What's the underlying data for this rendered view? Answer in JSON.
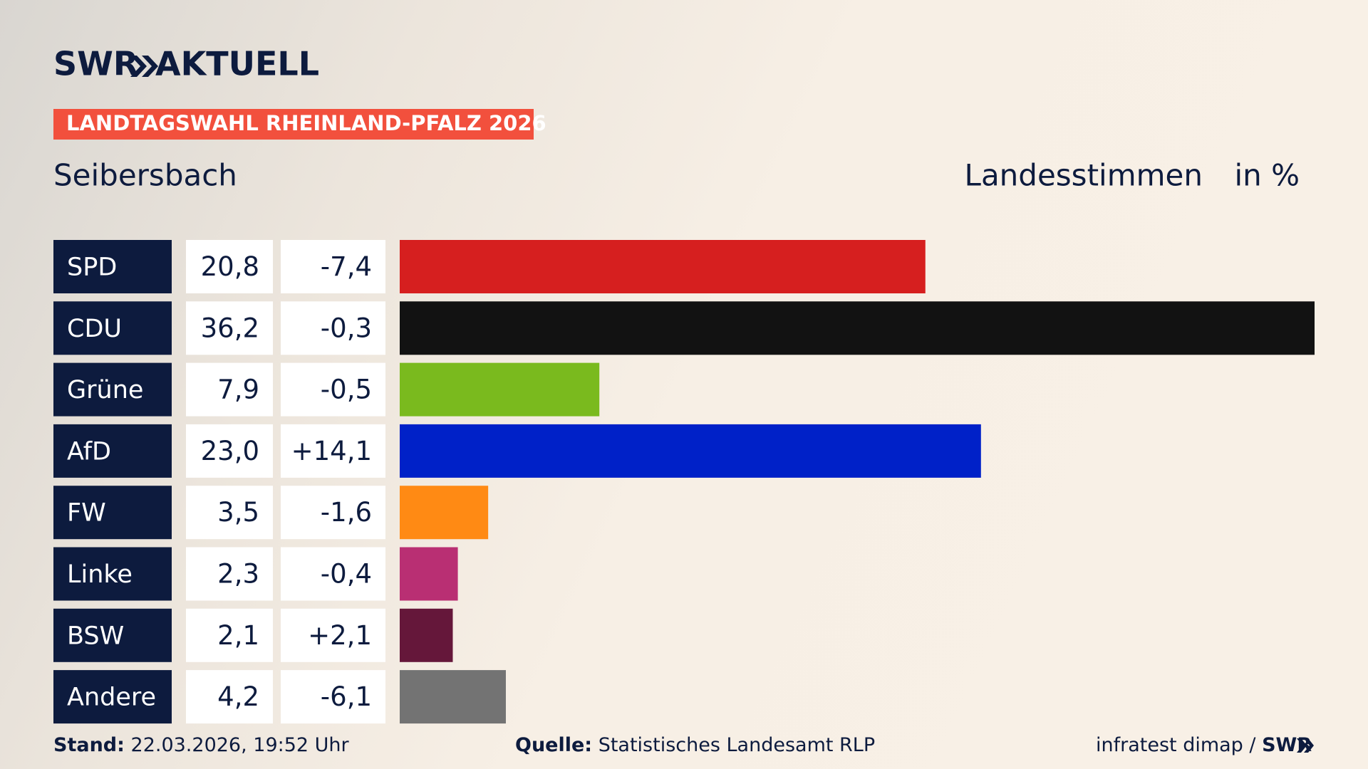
{
  "header": {
    "brand": "SWR",
    "product": "AKTUELL",
    "tag": "LANDTAGSWAHL RHEINLAND-PFALZ 2026"
  },
  "chart_data": {
    "type": "bar",
    "title": "Seibersbach",
    "measure": "Landesstimmen",
    "unit": "in %",
    "categories": [
      "SPD",
      "CDU",
      "Grüne",
      "AfD",
      "FW",
      "Linke",
      "BSW",
      "Andere"
    ],
    "values": [
      20.8,
      36.2,
      7.9,
      23.0,
      3.5,
      2.3,
      2.1,
      4.2
    ],
    "value_labels": [
      "20,8",
      "36,2",
      "7,9",
      "23,0",
      "3,5",
      "2,3",
      "2,1",
      "4,2"
    ],
    "changes": [
      -7.4,
      -0.3,
      -0.5,
      14.1,
      -1.6,
      -0.4,
      2.1,
      -6.1
    ],
    "change_labels": [
      "-7,4",
      "-0,3",
      "-0,5",
      "+14,1",
      "-1,6",
      "-0,4",
      "+2,1",
      "-6,1"
    ],
    "colors": [
      "#d61f1f",
      "#121212",
      "#7aba1e",
      "#0021c8",
      "#ff8a14",
      "#b92f73",
      "#65173a",
      "#737373"
    ]
  },
  "footer": {
    "stand_label": "Stand:",
    "stand": "22.03.2026, 19:52 Uhr",
    "source_label": "Quelle:",
    "source": "Statistisches Landesamt RLP",
    "credit": "infratest dimap /",
    "credit_brand": "SWR"
  }
}
